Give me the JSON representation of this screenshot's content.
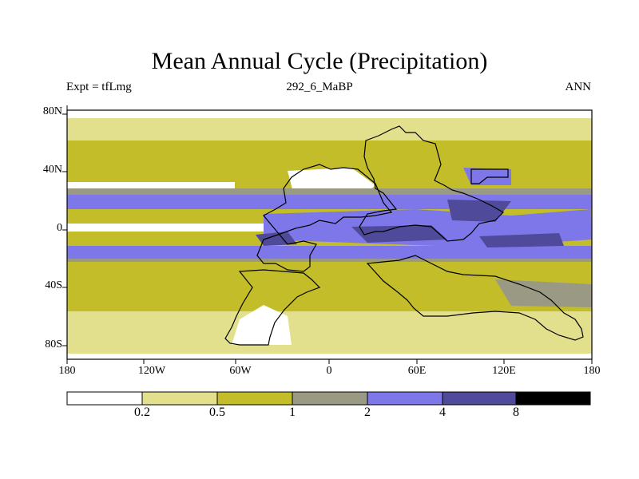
{
  "title": "Mean Annual Cycle (Precipitation)",
  "subtitle_left": "Expt = tfLmg",
  "subtitle_center": "292_6_MaBP",
  "subtitle_right": "ANN",
  "axes": {
    "lat_labels": [
      "80N",
      "40N",
      "0",
      "40S",
      "80S"
    ],
    "lon_labels": [
      "180",
      "120W",
      "60W",
      "0",
      "60E",
      "120E",
      "180"
    ]
  },
  "colorbar": {
    "levels": [
      "0.2",
      "0.5",
      "1",
      "2",
      "4",
      "8"
    ],
    "colors": [
      "#ffffff",
      "#e3e08d",
      "#c3bd2a",
      "#9a9983",
      "#7e77ea",
      "#4f4a99",
      "#000000"
    ]
  },
  "palette": {
    "white": "#ffffff",
    "light_yellow": "#e3e08d",
    "olive": "#c3bd2a",
    "gray": "#9a9983",
    "blue": "#7e77ea",
    "dark_blue": "#4f4a99"
  }
}
